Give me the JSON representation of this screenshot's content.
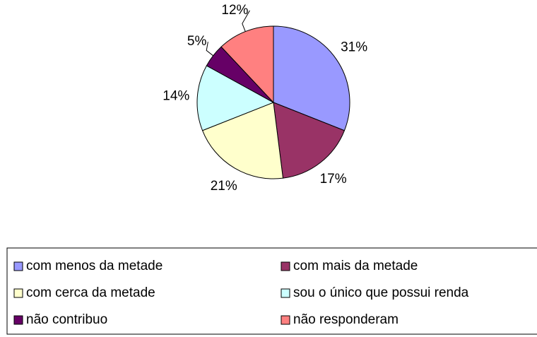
{
  "chart_data": {
    "type": "pie",
    "categories": [
      "com menos da metade",
      "com mais da metade",
      "com cerca da metade",
      "sou o único que possui renda",
      "não contribuo",
      "não responderam"
    ],
    "values": [
      31,
      17,
      21,
      14,
      5,
      12
    ],
    "value_labels": [
      "31%",
      "17%",
      "21%",
      "14%",
      "5%",
      "12%"
    ],
    "colors": [
      "#9999ff",
      "#993366",
      "#ffffcc",
      "#ccffff",
      "#660066",
      "#ff8080"
    ],
    "legend": "bottom"
  }
}
